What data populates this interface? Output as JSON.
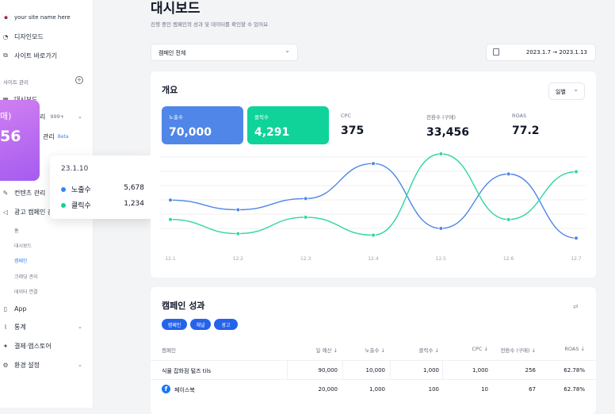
{
  "sidebar": {
    "site_name": "your site name here",
    "items": [
      {
        "label": "디자인모드",
        "icon": "palette-icon"
      },
      {
        "label": "사이트 바로가기",
        "icon": "external-link-icon"
      }
    ],
    "section_label": "사이트 관리",
    "dashboard": "대시보드",
    "order_suffix": "리",
    "order_badge": "999+",
    "member_label": "관리",
    "member_badge": "Beta",
    "content_mgmt": "컨텐츠 관리",
    "ad_campaign": "광고 캠페인 관",
    "sub_items": [
      "홈",
      "대시보드",
      "캠페인",
      "크레딧 관리",
      "데이터 연결"
    ],
    "bottom_items": [
      {
        "label": "App",
        "icon": "phone-icon"
      },
      {
        "label": "통계",
        "icon": "chart-icon"
      },
      {
        "label": "결제·앱스토어",
        "icon": "store-icon"
      },
      {
        "label": "환경 설정",
        "icon": "settings-icon"
      }
    ],
    "promo_title": "매)",
    "promo_value": "56"
  },
  "header": {
    "title": "대시보드",
    "subtitle": "진행 중인 캠페인의 성과 및 데이터를 확인할 수 있어요"
  },
  "filters": {
    "campaign_select": "캠페인 전체",
    "date_range": "2023.1.7 → 2023.1.13"
  },
  "overview": {
    "title": "개요",
    "period": "일별",
    "kpis": [
      {
        "label": "노출수",
        "value": "70,000"
      },
      {
        "label": "클릭수",
        "value": "4,291"
      },
      {
        "label": "CPC",
        "value": "375"
      },
      {
        "label": "전환수 (구매)",
        "value": "33,456"
      },
      {
        "label": "ROAS",
        "value": "77.2"
      }
    ]
  },
  "tooltip": {
    "date": "23.1.10",
    "rows": [
      {
        "label": "노출수",
        "value": "5,678",
        "color": "#3b82f6"
      },
      {
        "label": "클릭수",
        "value": "1,234",
        "color": "#10d39a"
      }
    ]
  },
  "chart_data": {
    "type": "line",
    "categories": [
      "12.1",
      "12.2",
      "12.3",
      "12.4",
      "12.5",
      "12.6",
      "12.7"
    ],
    "series": [
      {
        "name": "노출수",
        "color": "#4f86e8",
        "values": [
          0.38,
          0.25,
          0.4,
          0.87,
          0.0,
          0.73,
          -0.13
        ]
      },
      {
        "name": "클릭수",
        "color": "#2ed6a0",
        "values": [
          0.12,
          -0.07,
          0.15,
          -0.09,
          1.0,
          0.12,
          0.76
        ]
      }
    ]
  },
  "campaign": {
    "title": "캠페인 성과",
    "tabs": [
      "캠페인",
      "채널",
      "광고"
    ],
    "columns": [
      "캠페인",
      "일 예산 ↓",
      "노출수 ↓",
      "클릭수 ↓",
      "CPC ↓",
      "전환수 (구매) ↓",
      "ROAS ↓"
    ],
    "rows": [
      [
        "식물 잡화점 털즈 tils",
        "90,000",
        "10,000",
        "1,000",
        "1,000",
        "256",
        "62.78%"
      ],
      [
        "페이스북",
        "20,000",
        "1,000",
        "100",
        "10",
        "67",
        "62.78%"
      ]
    ]
  }
}
